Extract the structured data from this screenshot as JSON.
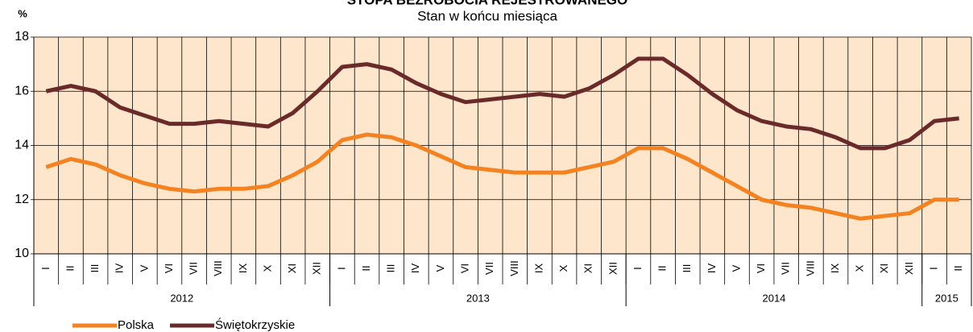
{
  "chart_data": {
    "type": "line",
    "title": "STOPA BEZROBOCIA REJESTROWANEGO",
    "subtitle": "Stan w końcu miesiąca",
    "y_label": "%",
    "categories": [
      "I",
      "II",
      "III",
      "IV",
      "V",
      "VI",
      "VII",
      "VIII",
      "IX",
      "X",
      "XI",
      "XII",
      "I",
      "II",
      "III",
      "IV",
      "V",
      "VI",
      "VII",
      "VIII",
      "IX",
      "X",
      "XI",
      "XII",
      "I",
      "II",
      "III",
      "IV",
      "V",
      "VI",
      "VII",
      "VIII",
      "IX",
      "X",
      "XI",
      "XII",
      "I",
      "II"
    ],
    "years": [
      "2012",
      "2013",
      "2014",
      "2015"
    ],
    "series": [
      {
        "name": "Polska",
        "color": "#f58220",
        "values": [
          13.2,
          13.5,
          13.3,
          12.9,
          12.6,
          12.4,
          12.3,
          12.4,
          12.4,
          12.5,
          12.9,
          13.4,
          14.2,
          14.4,
          14.3,
          14.0,
          13.6,
          13.2,
          13.1,
          13.0,
          13.0,
          13.0,
          13.2,
          13.4,
          13.9,
          13.9,
          13.5,
          13.0,
          12.5,
          12.0,
          11.8,
          11.7,
          11.5,
          11.3,
          11.4,
          11.5,
          12.0,
          12.0
        ]
      },
      {
        "name": "Świętokrzyskie",
        "color": "#6b2a2a",
        "values": [
          16.0,
          16.2,
          16.0,
          15.4,
          15.1,
          14.8,
          14.8,
          14.9,
          14.8,
          14.7,
          15.2,
          16.0,
          16.9,
          17.0,
          16.8,
          16.3,
          15.9,
          15.6,
          15.7,
          15.8,
          15.9,
          15.8,
          16.1,
          16.6,
          17.2,
          17.2,
          16.6,
          15.9,
          15.3,
          14.9,
          14.7,
          14.6,
          14.3,
          13.9,
          13.9,
          14.2,
          14.9,
          15.0
        ]
      }
    ],
    "ylim": [
      10,
      18
    ],
    "yticks": [
      10,
      12,
      14,
      16,
      18
    ],
    "grid": true
  }
}
